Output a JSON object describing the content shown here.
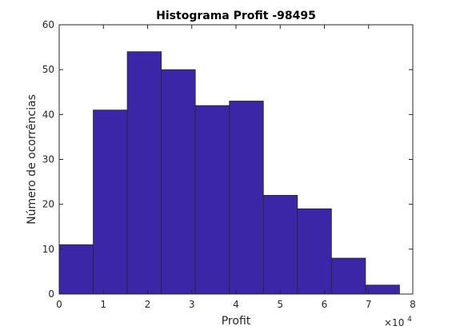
{
  "chart_data": {
    "type": "bar",
    "title": "Histograma Profit -98495",
    "xlabel": "Profit",
    "ylabel": "Número de ocorrências",
    "x_exponent_base": "×10",
    "x_exponent_power": "4",
    "bin_edges": [
      0,
      0.77,
      1.54,
      2.31,
      3.08,
      3.85,
      4.62,
      5.39,
      6.16,
      6.93,
      7.7
    ],
    "values": [
      11,
      41,
      54,
      50,
      42,
      43,
      22,
      19,
      8,
      2
    ],
    "xlim": [
      0,
      8
    ],
    "ylim": [
      0,
      60
    ],
    "xticks": [
      "0",
      "1",
      "2",
      "3",
      "4",
      "5",
      "6",
      "7",
      "8"
    ],
    "yticks": [
      "0",
      "10",
      "20",
      "30",
      "40",
      "50",
      "60"
    ],
    "bar_color": "#3b26a8",
    "edge_color": "#262626",
    "grid": false
  }
}
